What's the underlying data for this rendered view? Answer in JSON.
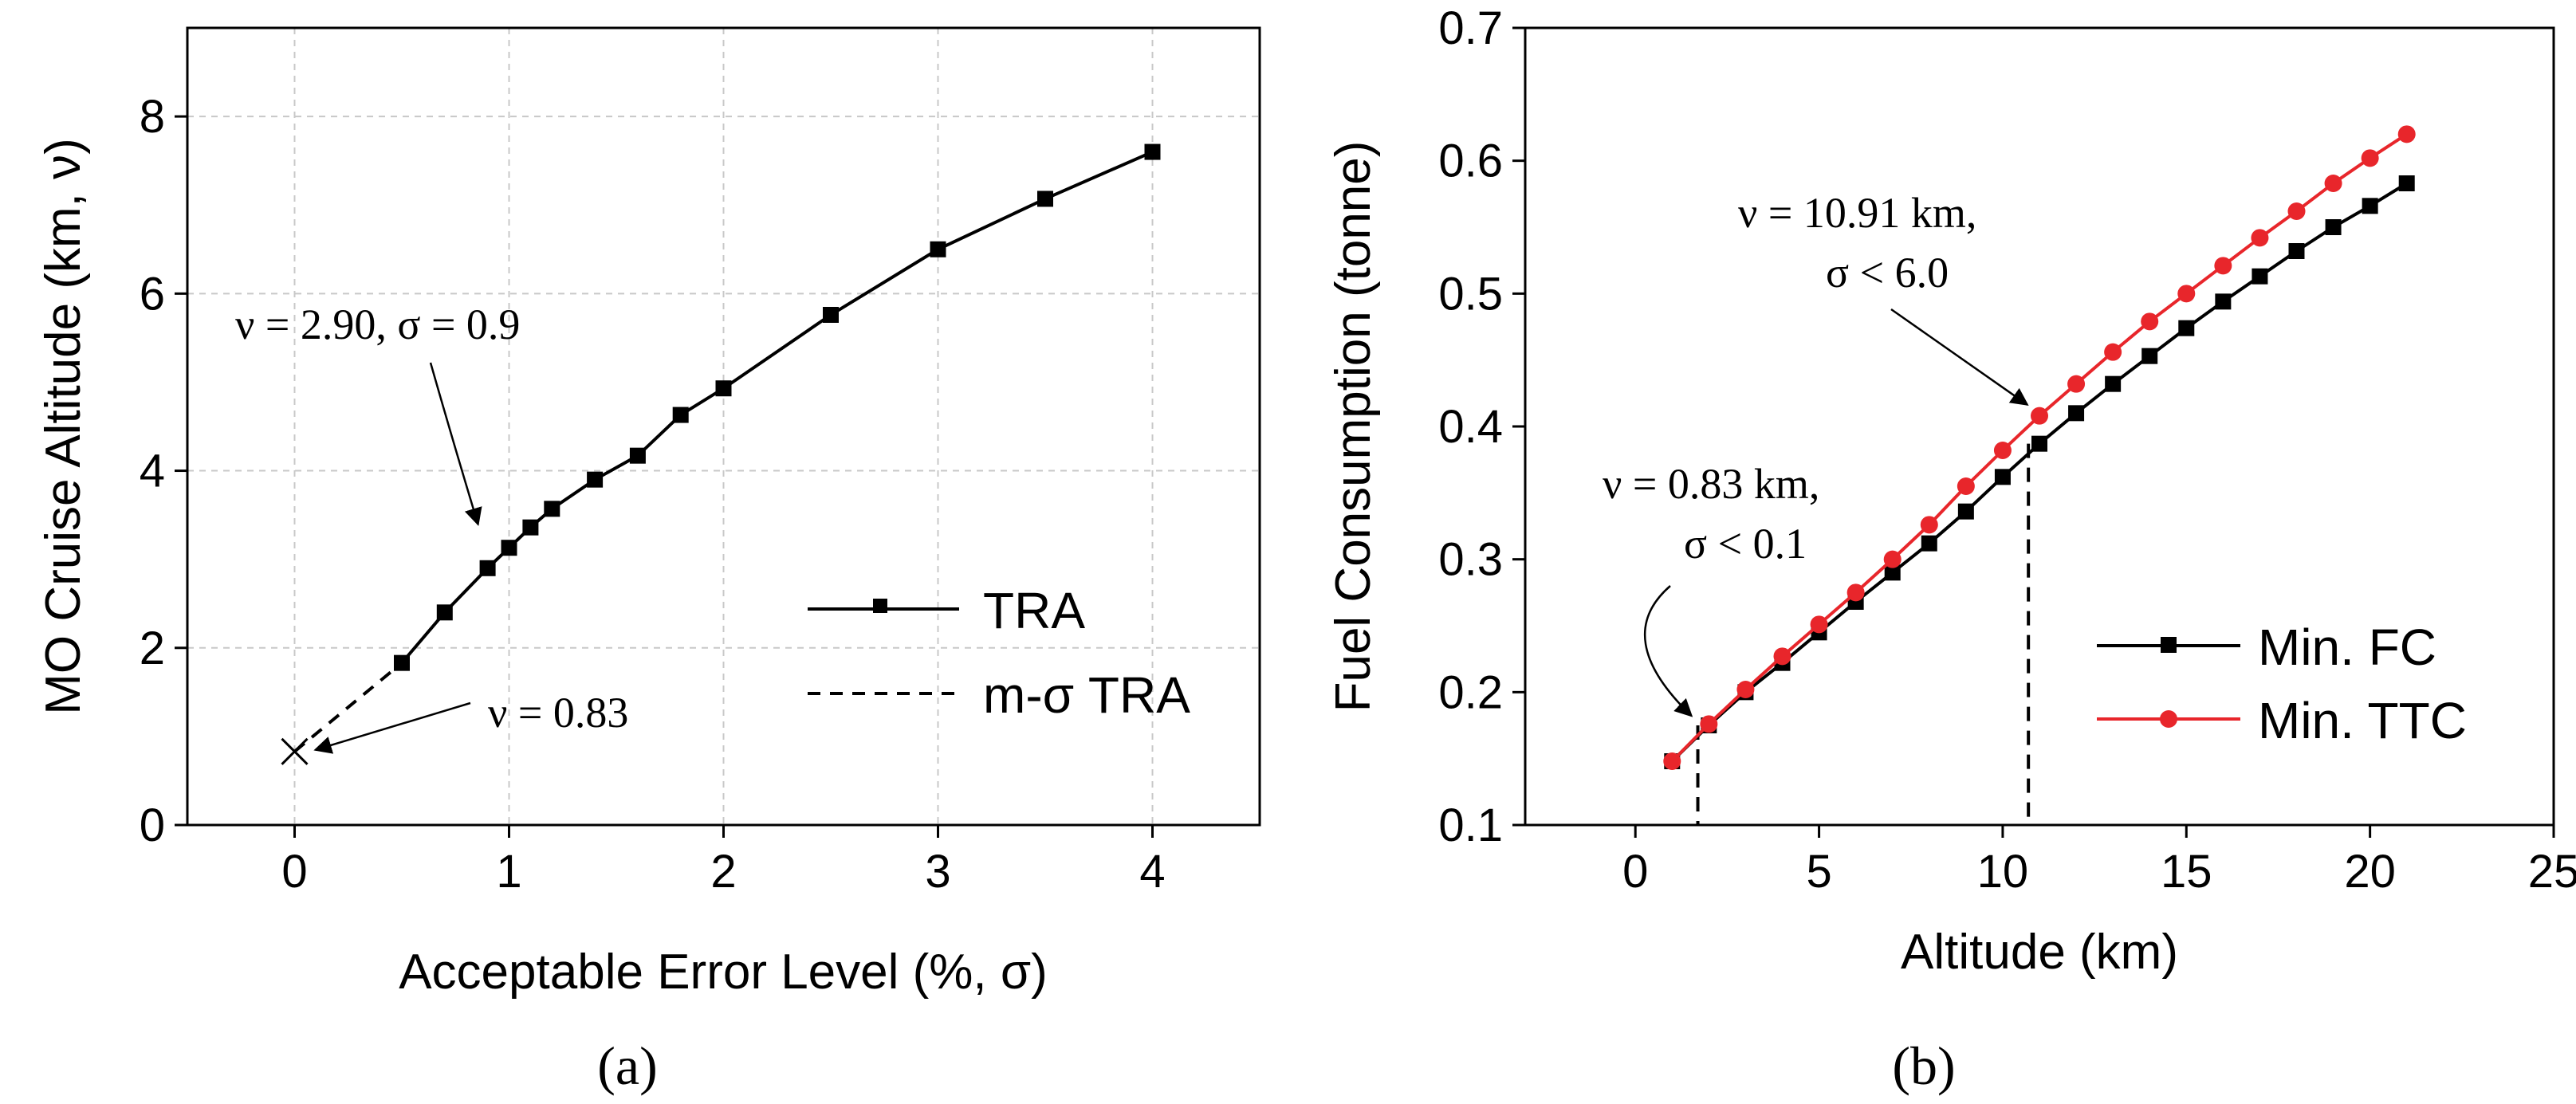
{
  "chart_data": [
    {
      "type": "line",
      "panel_label": "(a)",
      "xlabel": "Acceptable Error Level (%, σ)",
      "ylabel": "MO Cruise Altitude (km, ν)",
      "xlim": [
        -0.5,
        4.5
      ],
      "ylim": [
        0,
        9
      ],
      "x_ticks": [
        0,
        1,
        2,
        3,
        4
      ],
      "y_ticks": [
        0,
        2,
        4,
        6,
        8
      ],
      "grid": true,
      "legend_position": "right",
      "series": [
        {
          "name": "TRA",
          "style": "solid-square",
          "color": "#000000",
          "x": [
            0.5,
            0.7,
            0.9,
            1.0,
            1.1,
            1.2,
            1.4,
            1.6,
            1.8,
            2.0,
            2.5,
            3.0,
            3.5,
            4.0
          ],
          "y": [
            1.83,
            2.4,
            2.9,
            3.13,
            3.36,
            3.57,
            3.9,
            4.17,
            4.63,
            4.93,
            5.76,
            6.5,
            7.07,
            7.6
          ]
        },
        {
          "name": "m-σ TRA",
          "style": "dashed",
          "color": "#000000",
          "x": [
            0,
            0.5
          ],
          "y": [
            0.83,
            1.83
          ]
        }
      ],
      "marker_point": {
        "x": 0,
        "y": 0.83,
        "symbol": "x"
      },
      "annotations": [
        {
          "text": "ν = 2.90, σ = 0.9",
          "target": [
            0.9,
            2.9
          ]
        },
        {
          "text": "ν = 0.83",
          "target": [
            0,
            0.83
          ]
        }
      ]
    },
    {
      "type": "line",
      "panel_label": "(b)",
      "xlabel": "Altitude (km)",
      "ylabel": "Fuel Consumption (tonne)",
      "xlim": [
        -3,
        25
      ],
      "ylim": [
        0.1,
        0.7
      ],
      "x_ticks": [
        0,
        5,
        10,
        15,
        20,
        25
      ],
      "y_ticks": [
        0.1,
        0.2,
        0.3,
        0.4,
        0.5,
        0.6,
        0.7
      ],
      "grid": false,
      "legend_position": "bottom-right",
      "x": [
        1,
        2,
        3,
        4,
        5,
        6,
        7,
        8,
        9,
        10,
        11,
        12,
        13,
        14,
        15,
        16,
        17,
        18,
        19,
        20,
        21
      ],
      "series": [
        {
          "name": "Min. FC",
          "style": "solid-square",
          "color": "#000000",
          "values": [
            0.148,
            0.175,
            0.2,
            0.222,
            0.245,
            0.268,
            0.29,
            0.312,
            0.336,
            0.362,
            0.387,
            0.41,
            0.432,
            0.453,
            0.474,
            0.494,
            0.513,
            0.532,
            0.55,
            0.566,
            0.583
          ]
        },
        {
          "name": "Min. TTC",
          "style": "solid-circle",
          "color": "#e8262b",
          "values": [
            0.148,
            0.176,
            0.202,
            0.227,
            0.251,
            0.275,
            0.3,
            0.326,
            0.355,
            0.382,
            0.408,
            0.432,
            0.456,
            0.479,
            0.5,
            0.521,
            0.542,
            0.562,
            0.583,
            0.602,
            0.62
          ]
        }
      ],
      "reference_lines": [
        {
          "x": 1.7,
          "y_top": 0.175
        },
        {
          "x": 10.7,
          "y_top": 0.387
        }
      ],
      "annotations": [
        {
          "lines": [
            "ν = 0.83 km,",
            "σ < 0.1"
          ],
          "target": [
            1.7,
            0.175
          ]
        },
        {
          "lines": [
            "ν = 10.91 km,",
            "σ < 6.0"
          ],
          "target": [
            10.8,
            0.408
          ]
        }
      ]
    }
  ]
}
